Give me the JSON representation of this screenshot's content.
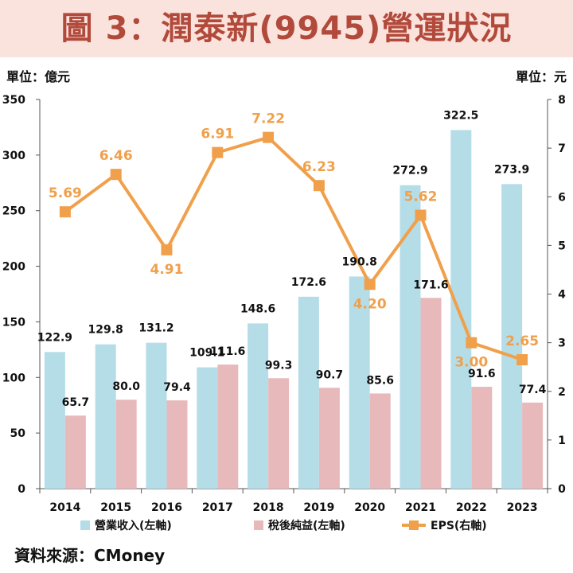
{
  "title": "圖 3：潤泰新(9945)營運狀況",
  "left_unit": "單位：億元",
  "right_unit": "單位：元",
  "source": "資料來源：CMoney",
  "colors": {
    "revenue": "#b5dde8",
    "net_income": "#e8b9bb",
    "eps": "#f0a04b",
    "title_bg": "#fbe3dd",
    "title_text": "#b24a3c"
  },
  "chart_data": {
    "type": "bar",
    "categories": [
      "2014",
      "2015",
      "2016",
      "2017",
      "2018",
      "2019",
      "2020",
      "2021",
      "2022",
      "2023"
    ],
    "series": [
      {
        "name": "營業收入(左軸)",
        "type": "bar",
        "axis": "left",
        "values": [
          122.9,
          129.8,
          131.2,
          109.1,
          148.6,
          172.6,
          190.8,
          272.9,
          322.5,
          273.9
        ]
      },
      {
        "name": "稅後純益(左軸)",
        "type": "bar",
        "axis": "left",
        "values": [
          65.7,
          80.0,
          79.4,
          111.6,
          99.3,
          90.7,
          85.6,
          171.6,
          91.6,
          77.4
        ]
      },
      {
        "name": "EPS(右軸)",
        "type": "line",
        "axis": "right",
        "values": [
          5.69,
          6.46,
          4.91,
          6.91,
          7.22,
          6.23,
          4.2,
          5.62,
          3.0,
          2.65
        ]
      }
    ],
    "value_labels": {
      "revenue": [
        "122.9",
        "129.8",
        "131.2",
        "109.1",
        "148.6",
        "172.6",
        "190.8",
        "272.9",
        "322.5",
        "273.9"
      ],
      "net_income": [
        "65.7",
        "80.0",
        "79.4",
        "111.6",
        "99.3",
        "90.7",
        "85.6",
        "171.6",
        "91.6",
        "77.4"
      ],
      "eps": [
        "5.69",
        "6.46",
        "4.91",
        "6.91",
        "7.22",
        "6.23",
        "4.20",
        "5.62",
        "3.00",
        "2.65"
      ]
    },
    "ylim_left": [
      0,
      350
    ],
    "yticks_left": [
      "0",
      "50",
      "100",
      "150",
      "200",
      "250",
      "300",
      "350"
    ],
    "ylim_right": [
      0,
      8
    ],
    "yticks_right": [
      "0",
      "1",
      "2",
      "3",
      "4",
      "5",
      "6",
      "7",
      "8"
    ],
    "grid": false,
    "legend": "bottom"
  }
}
